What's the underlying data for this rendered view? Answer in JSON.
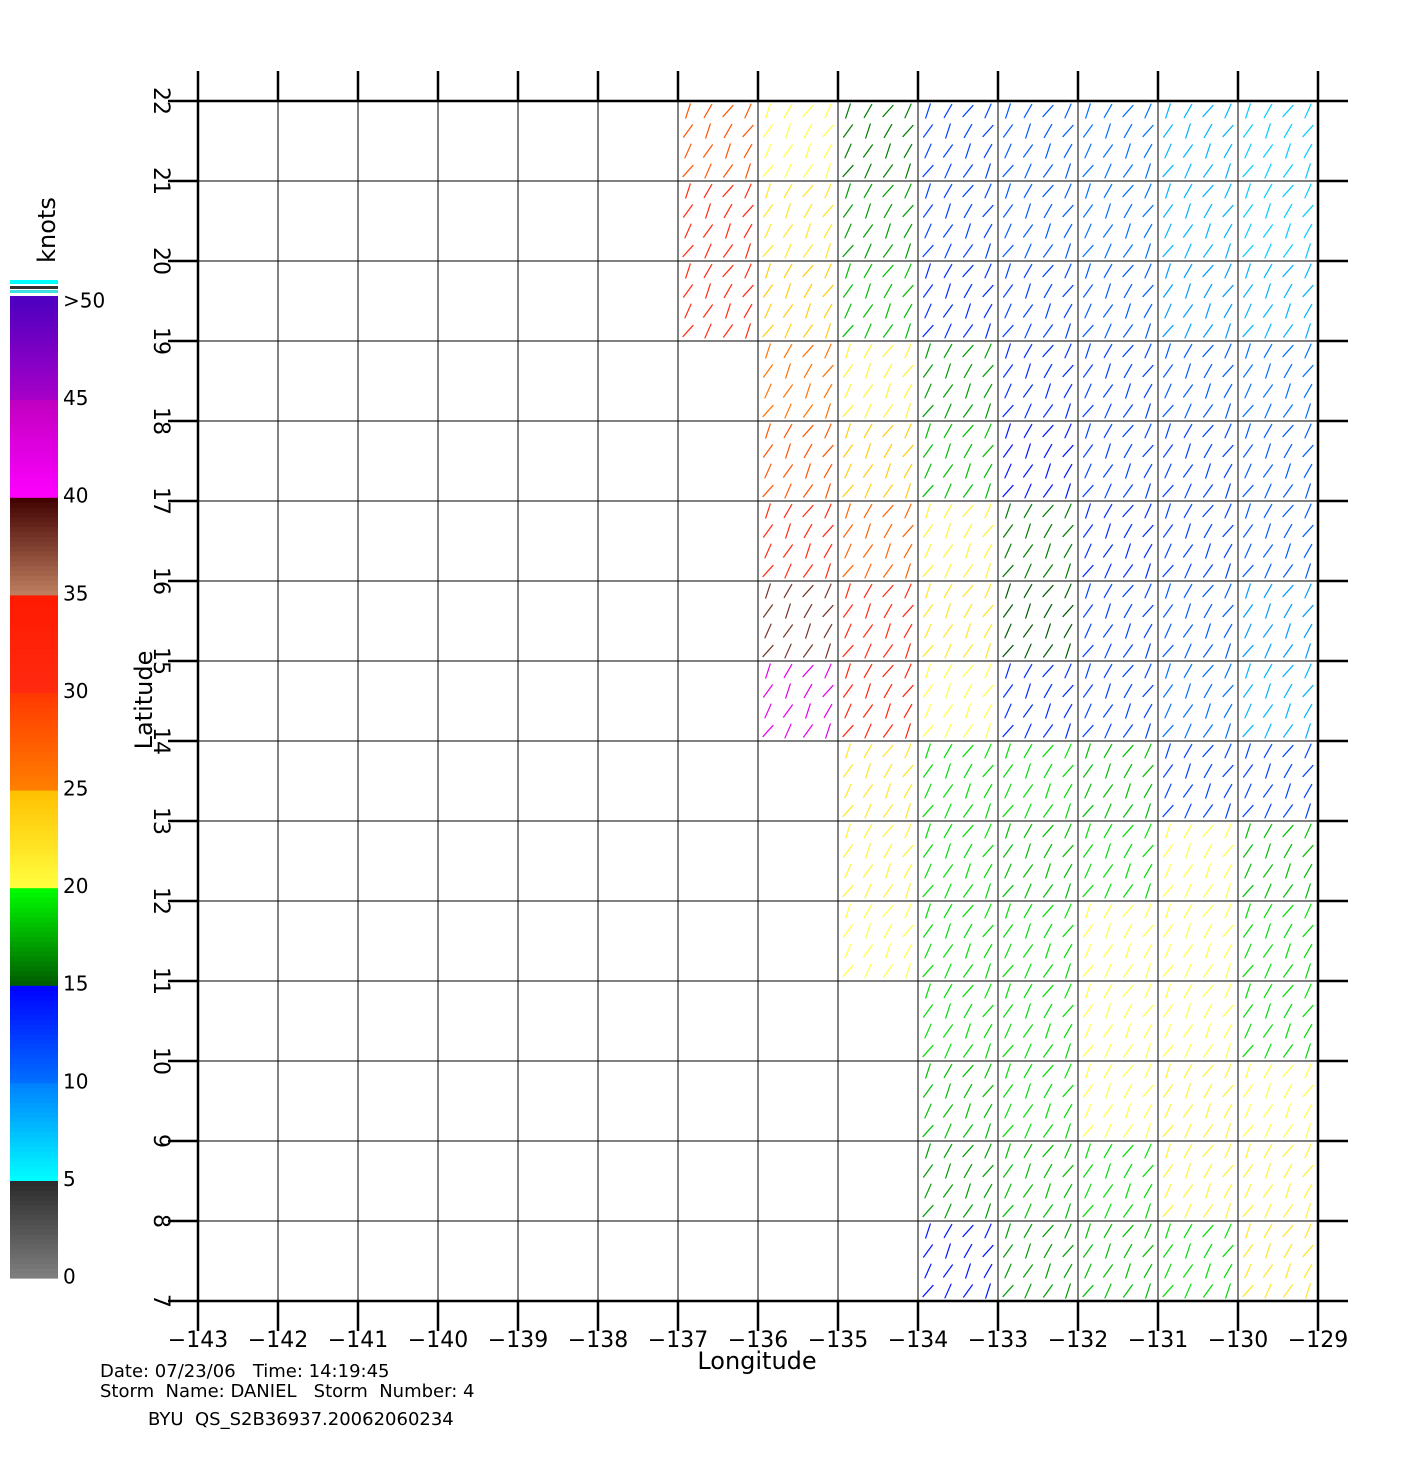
{
  "chart_data": {
    "type": "vector-field",
    "title": "BYU  QS_S2B36937.20062060234",
    "xlabel": "Longitude",
    "ylabel": "Latitude",
    "annotations": [
      "Date: 07/23/06   Time: 14:19:45",
      "Storm  Name: DANIEL   Storm  Number: 4"
    ],
    "xlim": [
      -143,
      -129
    ],
    "ylim": [
      7,
      22
    ],
    "xticks": [
      {
        "value": -143,
        "label": "−143"
      },
      {
        "value": -142,
        "label": "−142"
      },
      {
        "value": -141,
        "label": "−141"
      },
      {
        "value": -140,
        "label": "−140"
      },
      {
        "value": -139,
        "label": "−139"
      },
      {
        "value": -138,
        "label": "−138"
      },
      {
        "value": -137,
        "label": "−137"
      },
      {
        "value": -136,
        "label": "−136"
      },
      {
        "value": -135,
        "label": "−135"
      },
      {
        "value": -134,
        "label": "−134"
      },
      {
        "value": -133,
        "label": "−133"
      },
      {
        "value": -132,
        "label": "−132"
      },
      {
        "value": -131,
        "label": "−131"
      },
      {
        "value": -130,
        "label": "−130"
      },
      {
        "value": -129,
        "label": "−129"
      }
    ],
    "yticks": [
      7,
      8,
      9,
      10,
      11,
      12,
      13,
      14,
      15,
      16,
      17,
      18,
      19,
      20,
      21,
      22
    ],
    "grid": true,
    "wind": {
      "lon": [
        -136.5,
        -135.5,
        -134.5,
        -133.5,
        -132.5,
        -131.5,
        -130.5,
        -129.5
      ],
      "lat": [
        21.5,
        20.5,
        19.5,
        18.5,
        17.5,
        16.5,
        15.5,
        14.5,
        13.5,
        12.5,
        11.5,
        10.5,
        9.5,
        8.5,
        7.5
      ],
      "speed": [
        [
          28,
          20,
          16,
          12,
          11,
          10,
          8,
          7
        ],
        [
          30,
          22,
          17,
          12,
          11,
          10,
          8,
          7
        ],
        [
          30,
          24,
          18,
          13,
          12,
          11,
          9,
          8
        ],
        [
          null,
          26,
          21,
          17,
          13,
          12,
          11,
          10
        ],
        [
          null,
          28,
          24,
          18,
          14,
          12,
          12,
          11
        ],
        [
          null,
          30,
          27,
          21,
          16,
          13,
          12,
          11
        ],
        [
          null,
          38,
          30,
          22,
          15,
          12,
          11,
          9
        ],
        [
          null,
          42,
          32,
          20,
          13,
          12,
          10,
          8
        ],
        [
          null,
          null,
          22,
          19,
          19,
          18,
          12,
          12
        ],
        [
          null,
          null,
          21,
          19,
          18,
          19,
          20,
          18
        ],
        [
          null,
          null,
          20,
          19,
          19,
          20,
          20,
          19
        ],
        [
          null,
          null,
          null,
          19,
          19,
          20,
          20,
          19
        ],
        [
          null,
          null,
          null,
          18,
          19,
          20,
          21,
          20
        ],
        [
          null,
          null,
          null,
          17,
          18,
          19,
          21,
          21
        ],
        [
          null,
          null,
          null,
          14,
          17,
          18,
          19,
          22
        ]
      ]
    },
    "colorbar": {
      "label": "knots",
      "range": [
        0,
        50
      ],
      "ticks": [
        0,
        5,
        10,
        15,
        20,
        25,
        30,
        35,
        40,
        45,
        {
          "value": 50,
          "label": ">50"
        }
      ],
      "stops": [
        [
          0,
          "#808080"
        ],
        [
          5,
          "#2a2a2a"
        ],
        [
          5,
          "#00ffff"
        ],
        [
          10,
          "#0080ff"
        ],
        [
          10,
          "#0070ff"
        ],
        [
          15,
          "#0000ff"
        ],
        [
          15,
          "#005a00"
        ],
        [
          20,
          "#00ff00"
        ],
        [
          20,
          "#ffff40"
        ],
        [
          25,
          "#ffc000"
        ],
        [
          25,
          "#ff8000"
        ],
        [
          30,
          "#ff3800"
        ],
        [
          30,
          "#ff2a10"
        ],
        [
          35,
          "#ff1a00"
        ],
        [
          35,
          "#c08060"
        ],
        [
          40,
          "#400000"
        ],
        [
          40,
          "#ff00ff"
        ],
        [
          45,
          "#c000c0"
        ],
        [
          45,
          "#a800c8"
        ],
        [
          50,
          "#5000c0"
        ]
      ]
    }
  }
}
